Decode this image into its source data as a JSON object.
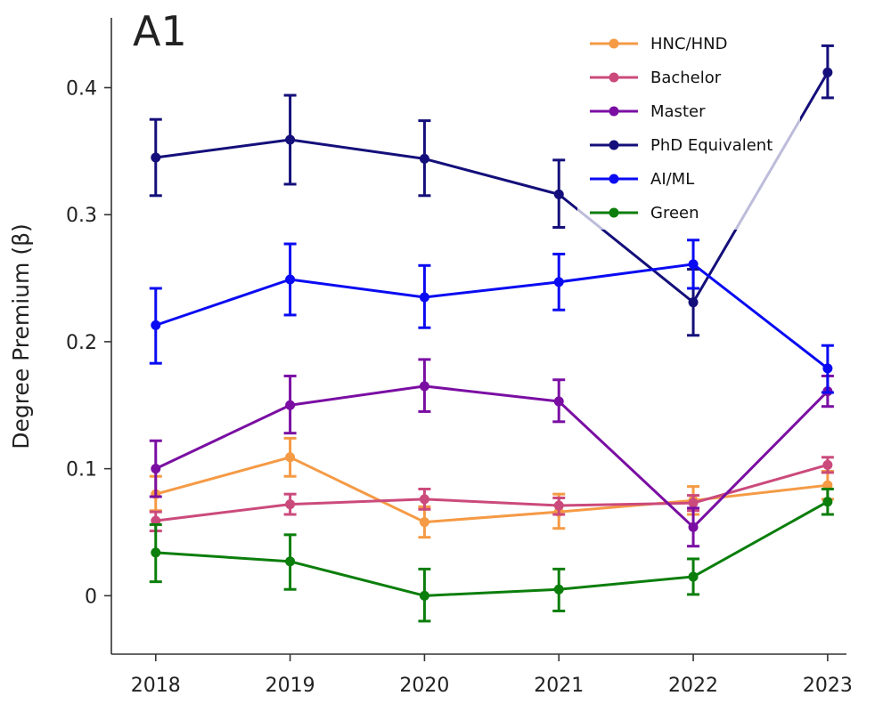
{
  "panel_label": "A1",
  "chart_data": {
    "type": "line",
    "xlabel": "",
    "ylabel": "Degree Premium (β)",
    "x": [
      2018,
      2019,
      2020,
      2021,
      2022,
      2023
    ],
    "x_tick_labels": [
      "2018",
      "2019",
      "2020",
      "2021",
      "2022",
      "2023"
    ],
    "xlim": [
      2017.67,
      2023.14
    ],
    "ylim": [
      -0.046,
      0.455
    ],
    "y_ticks": [
      0,
      0.1,
      0.2,
      0.3,
      0.4
    ],
    "y_tick_labels": [
      "0",
      "0.1",
      "0.2",
      "0.3",
      "0.4"
    ],
    "grid": false,
    "legend_position": "top-right",
    "error_bars": true,
    "series": [
      {
        "name": "HNC/HND",
        "color": "#f59a45",
        "values": [
          0.08,
          0.109,
          0.058,
          0.066,
          0.075,
          0.087
        ],
        "lower": [
          0.067,
          0.094,
          0.046,
          0.053,
          0.064,
          0.076
        ],
        "upper": [
          0.094,
          0.124,
          0.07,
          0.08,
          0.086,
          0.098
        ]
      },
      {
        "name": "Bachelor",
        "color": "#cb4a7c",
        "values": [
          0.059,
          0.072,
          0.076,
          0.071,
          0.073,
          0.103
        ],
        "lower": [
          0.051,
          0.064,
          0.068,
          0.064,
          0.067,
          0.097
        ],
        "upper": [
          0.066,
          0.08,
          0.084,
          0.077,
          0.079,
          0.109
        ]
      },
      {
        "name": "Master",
        "color": "#7a0ea3",
        "values": [
          0.1,
          0.15,
          0.165,
          0.153,
          0.054,
          0.161
        ],
        "lower": [
          0.078,
          0.128,
          0.145,
          0.137,
          0.039,
          0.149
        ],
        "upper": [
          0.122,
          0.173,
          0.186,
          0.17,
          0.069,
          0.173
        ]
      },
      {
        "name": "PhD Equivalent",
        "color": "#140f7a",
        "values": [
          0.345,
          0.359,
          0.344,
          0.316,
          0.231,
          0.412
        ],
        "lower": [
          0.315,
          0.324,
          0.315,
          0.29,
          0.205,
          0.392
        ],
        "upper": [
          0.375,
          0.394,
          0.374,
          0.343,
          0.257,
          0.433
        ]
      },
      {
        "name": "AI/ML",
        "color": "#0a0bf2",
        "values": [
          0.213,
          0.249,
          0.235,
          0.247,
          0.261,
          0.179
        ],
        "lower": [
          0.183,
          0.221,
          0.211,
          0.225,
          0.242,
          0.16
        ],
        "upper": [
          0.242,
          0.277,
          0.26,
          0.269,
          0.28,
          0.197
        ]
      },
      {
        "name": "Green",
        "color": "#0b7e0b",
        "values": [
          0.034,
          0.027,
          0.0,
          0.005,
          0.015,
          0.074
        ],
        "lower": [
          0.011,
          0.005,
          -0.02,
          -0.012,
          0.001,
          0.064
        ],
        "upper": [
          0.056,
          0.048,
          0.021,
          0.021,
          0.029,
          0.084
        ]
      }
    ]
  }
}
